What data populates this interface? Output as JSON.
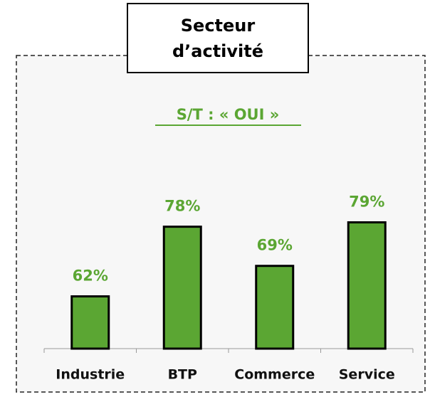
{
  "chart_data": {
    "type": "bar",
    "title": "Secteur d’activité",
    "subtitle": "S/T  : « OUI »",
    "categories": [
      "Industrie",
      "BTP",
      "Commerce",
      "Service"
    ],
    "values": [
      62,
      78,
      69,
      79
    ],
    "value_labels": [
      "62%",
      "78%",
      "69%",
      "79%"
    ],
    "color": "#5ba633",
    "ylim": [
      50,
      100
    ]
  }
}
